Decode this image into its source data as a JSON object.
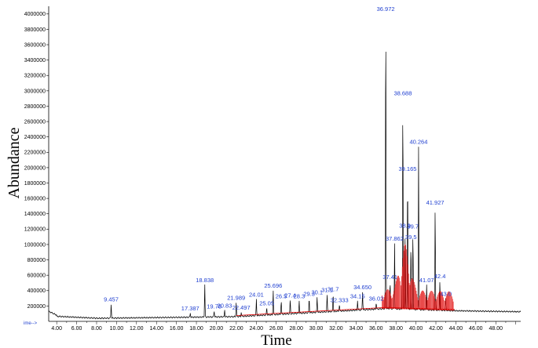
{
  "chart_data": {
    "type": "line",
    "title": "",
    "xlabel": "Time",
    "ylabel": "Abundance",
    "x_axis_prefix": "ime-->",
    "xlim": [
      3.2,
      50.5
    ],
    "ylim": [
      0,
      4100000
    ],
    "x_ticks": [
      "4.00",
      "6.00",
      "8.00",
      "10.00",
      "12.00",
      "14.00",
      "16.00",
      "18.00",
      "20.00",
      "22.00",
      "24.00",
      "26.00",
      "28.00",
      "30.00",
      "32.00",
      "34.00",
      "36.00",
      "38.00",
      "40.00",
      "42.00",
      "44.00",
      "46.00",
      "48.00"
    ],
    "y_ticks": [
      "200000",
      "400000",
      "600000",
      "800000",
      "1000000",
      "1200000",
      "1400000",
      "1600000",
      "1800000",
      "2000000",
      "2200000",
      "2400000",
      "2600000",
      "2800000",
      "3000000",
      "3200000",
      "3400000",
      "3600000",
      "3800000",
      "4000000"
    ],
    "colors": {
      "tic": "#000000",
      "integration": "#e00000",
      "peak_label": "#1f3fd0",
      "axis": "#000000"
    },
    "peaks": [
      {
        "label": "9.457",
        "time": 9.457,
        "abundance": 230000
      },
      {
        "label": "17.387",
        "time": 17.387,
        "abundance": 110000
      },
      {
        "label": "18.838",
        "time": 18.838,
        "abundance": 480000
      },
      {
        "label": "19.78",
        "time": 19.78,
        "abundance": 140000
      },
      {
        "label": "20.83",
        "time": 20.83,
        "abundance": 150000
      },
      {
        "label": "21.989",
        "time": 21.989,
        "abundance": 250000
      },
      {
        "label": "22.497",
        "time": 22.497,
        "abundance": 120000
      },
      {
        "label": "24.01",
        "time": 24.01,
        "abundance": 290000
      },
      {
        "label": "25.05",
        "time": 25.05,
        "abundance": 180000
      },
      {
        "label": "25.696",
        "time": 25.696,
        "abundance": 410000
      },
      {
        "label": "26.5",
        "time": 26.5,
        "abundance": 270000
      },
      {
        "label": "27.4",
        "time": 27.4,
        "abundance": 280000
      },
      {
        "label": "28.3",
        "time": 28.3,
        "abundance": 270000
      },
      {
        "label": "29.3",
        "time": 29.3,
        "abundance": 300000
      },
      {
        "label": "30.1",
        "time": 30.1,
        "abundance": 320000
      },
      {
        "label": "31.1",
        "time": 31.1,
        "abundance": 350000
      },
      {
        "label": "31.7",
        "time": 31.7,
        "abundance": 360000
      },
      {
        "label": "32.333",
        "time": 32.333,
        "abundance": 220000
      },
      {
        "label": "34.15",
        "time": 34.15,
        "abundance": 270000
      },
      {
        "label": "34.650",
        "time": 34.65,
        "abundance": 390000
      },
      {
        "label": "36.02",
        "time": 36.02,
        "abundance": 240000
      },
      {
        "label": "36.972",
        "time": 36.972,
        "abundance": 4060000
      },
      {
        "label": "37.41",
        "time": 37.41,
        "abundance": 520000
      },
      {
        "label": "37.862",
        "time": 37.862,
        "abundance": 1020000
      },
      {
        "label": "38.688",
        "time": 38.688,
        "abundance": 2910000
      },
      {
        "label": "38.9",
        "time": 38.9,
        "abundance": 1190000
      },
      {
        "label": "39.165",
        "time": 39.165,
        "abundance": 1930000
      },
      {
        "label": "39.5",
        "time": 39.5,
        "abundance": 1040000
      },
      {
        "label": "39.7",
        "time": 39.7,
        "abundance": 1180000
      },
      {
        "label": "40.264",
        "time": 40.264,
        "abundance": 2280000
      },
      {
        "label": "41.07",
        "time": 41.07,
        "abundance": 480000
      },
      {
        "label": "41.927",
        "time": 41.927,
        "abundance": 1490000
      },
      {
        "label": "42.4",
        "time": 42.4,
        "abundance": 530000
      },
      {
        "label": "43.0",
        "time": 43.0,
        "abundance": 300000
      }
    ]
  }
}
